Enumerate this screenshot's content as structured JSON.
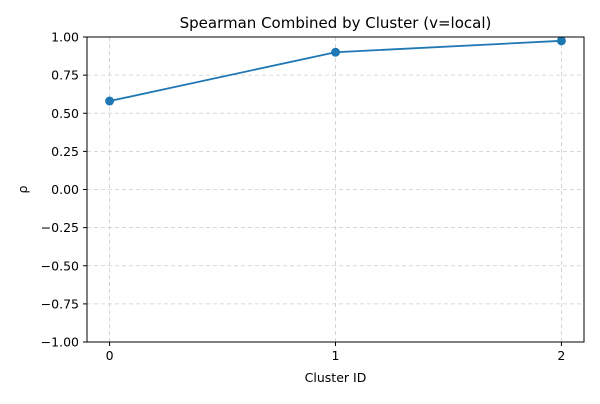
{
  "chart_data": {
    "type": "line",
    "title": "Spearman Combined by Cluster (v=local)",
    "xlabel": "Cluster ID",
    "ylabel": "ρ",
    "x": [
      0,
      1,
      2
    ],
    "x_tick_labels": [
      "0",
      "1",
      "2"
    ],
    "xlim": [
      -0.1,
      2.1
    ],
    "ylim": [
      -1.0,
      1.0
    ],
    "y_ticks": [
      -1.0,
      -0.75,
      -0.5,
      -0.25,
      0.0,
      0.25,
      0.5,
      0.75,
      1.0
    ],
    "y_tick_labels": [
      "−1.00",
      "−0.75",
      "−0.50",
      "−0.25",
      "0.00",
      "0.25",
      "0.50",
      "0.75",
      "1.00"
    ],
    "series": [
      {
        "values": [
          0.58,
          0.9,
          0.975
        ],
        "color": "#1f77b4",
        "marker": "circle"
      }
    ],
    "grid": true,
    "grid_style": "dashed",
    "legend": false
  }
}
